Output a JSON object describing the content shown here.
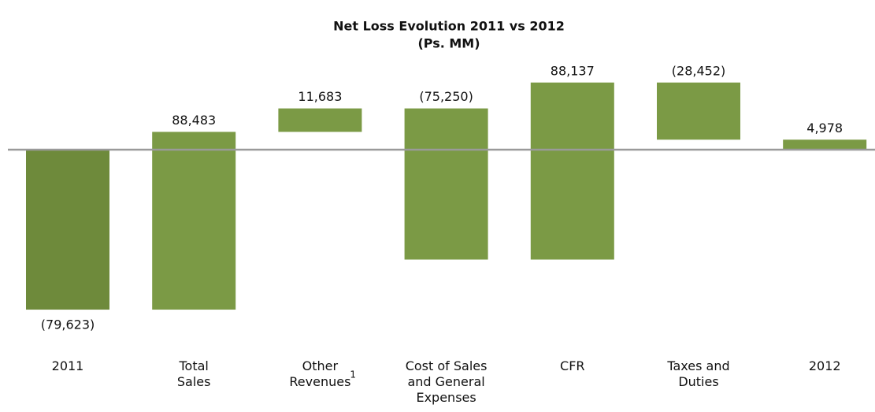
{
  "chart_data": {
    "type": "waterfall",
    "title": "Net Loss Evolution 2011 vs 2012",
    "subtitle": "(Ps. MM)",
    "categories": [
      "2011",
      "Total\nSales",
      "Other\nRevenues",
      "Cost of Sales\nand General\nExpenses",
      "CFR",
      "Taxes and\nDuties",
      "2012"
    ],
    "category_footnotes": [
      null,
      null,
      "1",
      null,
      null,
      null,
      null
    ],
    "values": [
      -79623,
      88483,
      11683,
      -75250,
      88137,
      -28452,
      4978
    ],
    "value_labels": [
      "(79,623)",
      "88,483",
      "11,683",
      "(75,250)",
      "88,137",
      "(28,452)",
      "4,978"
    ],
    "is_total": [
      true,
      false,
      false,
      false,
      false,
      false,
      true
    ],
    "colors": [
      "#6e8a3b",
      "#7b9a45",
      "#7b9a45",
      "#7b9a45",
      "#7b9a45",
      "#7b9a45",
      "#7b9a45"
    ],
    "ylim": [
      -85000,
      40000
    ]
  }
}
